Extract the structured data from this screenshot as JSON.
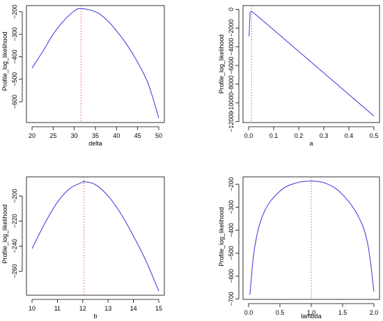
{
  "chart_data": [
    {
      "type": "line",
      "xlabel": "delta",
      "ylabel": "Profile_log_likelihood",
      "xlim": [
        20,
        50
      ],
      "ylim": [
        -680,
        -185
      ],
      "xticks": [
        20,
        25,
        30,
        35,
        40,
        45,
        50
      ],
      "yticks": [
        -200,
        -300,
        -400,
        -500,
        -600
      ],
      "x": [
        20,
        22.5,
        25,
        27.5,
        30,
        31.6,
        35,
        37.5,
        40,
        42.5,
        45,
        47.5,
        50
      ],
      "y": [
        -450,
        -378,
        -300,
        -240,
        -197,
        -186,
        -200,
        -233,
        -285,
        -348,
        -425,
        -520,
        -672
      ],
      "line_color": "#3333dd",
      "vline": 31.6,
      "vline_color": "#ff5555"
    },
    {
      "type": "line",
      "xlabel": "a",
      "ylabel": "Profile_log_likelihood",
      "xlim": [
        0,
        0.5
      ],
      "ylim": [
        -11800,
        100
      ],
      "xticks": [
        0.0,
        0.1,
        0.2,
        0.3,
        0.4,
        0.5
      ],
      "xtick_labels": [
        "0.0",
        "0.1",
        "0.2",
        "0.3",
        "0.4",
        "0.5"
      ],
      "yticks": [
        0,
        -2000,
        -4000,
        -6000,
        -8000,
        -10000,
        -12000
      ],
      "x": [
        0.002,
        0.006,
        0.012,
        0.05,
        0.1,
        0.2,
        0.3,
        0.4,
        0.5
      ],
      "y": [
        -2900,
        -300,
        -220,
        -1050,
        -2200,
        -4500,
        -6800,
        -9100,
        -11400
      ],
      "line_color": "#3333dd",
      "vline": 0.012,
      "vline_color": "#ff5555"
    },
    {
      "type": "line",
      "xlabel": "b",
      "ylabel": "Profile_log_likelihood",
      "xlim": [
        10,
        15
      ],
      "ylim": [
        -277,
        -187
      ],
      "xticks": [
        10,
        11,
        12,
        13,
        14,
        15
      ],
      "yticks": [
        -200,
        -220,
        -240,
        -260
      ],
      "x": [
        10,
        10.5,
        11,
        11.5,
        12,
        12.05,
        12.5,
        13,
        13.5,
        14,
        14.5,
        15
      ],
      "y": [
        -242,
        -222,
        -205,
        -194,
        -189,
        -188.5,
        -191,
        -200,
        -214,
        -232,
        -252,
        -276
      ],
      "line_color": "#3333dd",
      "vline": 12.05,
      "vline_color": "#ff5555"
    },
    {
      "type": "line",
      "xlabel": "lambda",
      "ylabel": "Profile_log_likelihood",
      "xlim": [
        0,
        2
      ],
      "ylim": [
        -690,
        -180
      ],
      "xticks": [
        0.0,
        0.5,
        1.0,
        1.5,
        2.0
      ],
      "xtick_labels": [
        "0.0",
        "0.5",
        "1.0",
        "1.5",
        "2.0"
      ],
      "yticks": [
        -200,
        -300,
        -400,
        -500,
        -600,
        -700
      ],
      "x": [
        0.02,
        0.1,
        0.25,
        0.5,
        0.75,
        1.0,
        1.25,
        1.5,
        1.75,
        1.9,
        2.0
      ],
      "y": [
        -682,
        -470,
        -320,
        -230,
        -195,
        -186,
        -198,
        -245,
        -340,
        -460,
        -668
      ],
      "line_color": "#3333dd",
      "vline": 1.0,
      "vline_color": "#ff5555"
    }
  ]
}
